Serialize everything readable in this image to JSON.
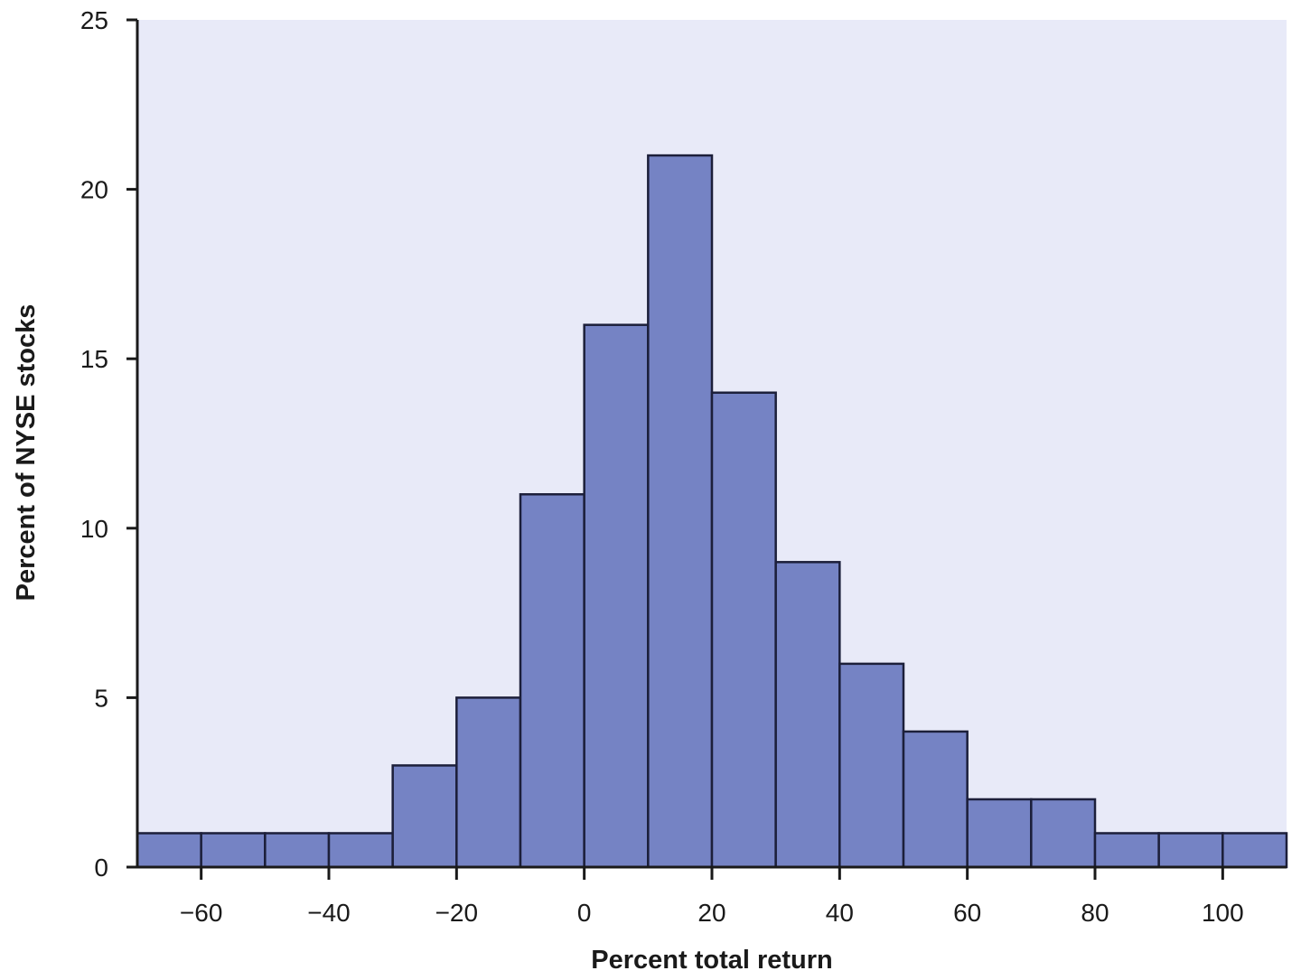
{
  "chart_data": {
    "type": "bar",
    "subtype": "histogram",
    "title": "",
    "xlabel": "Percent total return",
    "ylabel": "Percent of NYSE stocks",
    "xlim": [
      -70,
      110
    ],
    "ylim": [
      0,
      25
    ],
    "x_ticks": [
      -60,
      -40,
      -20,
      0,
      20,
      40,
      60,
      80,
      100
    ],
    "x_tick_labels": [
      "−60",
      "−40",
      "−20",
      "0",
      "20",
      "40",
      "60",
      "80",
      "100"
    ],
    "y_ticks": [
      0,
      5,
      10,
      15,
      20,
      25
    ],
    "y_tick_labels": [
      "0",
      "5",
      "10",
      "15",
      "20",
      "25"
    ],
    "bin_width": 10,
    "bins": [
      {
        "start": -70,
        "end": -60,
        "value": 1
      },
      {
        "start": -60,
        "end": -50,
        "value": 1
      },
      {
        "start": -50,
        "end": -40,
        "value": 1
      },
      {
        "start": -40,
        "end": -30,
        "value": 1
      },
      {
        "start": -30,
        "end": -20,
        "value": 3
      },
      {
        "start": -20,
        "end": -10,
        "value": 5
      },
      {
        "start": -10,
        "end": 0,
        "value": 11
      },
      {
        "start": 0,
        "end": 10,
        "value": 16
      },
      {
        "start": 10,
        "end": 20,
        "value": 21
      },
      {
        "start": 20,
        "end": 30,
        "value": 14
      },
      {
        "start": 30,
        "end": 40,
        "value": 9
      },
      {
        "start": 40,
        "end": 50,
        "value": 6
      },
      {
        "start": 50,
        "end": 60,
        "value": 4
      },
      {
        "start": 60,
        "end": 70,
        "value": 2
      },
      {
        "start": 70,
        "end": 80,
        "value": 2
      },
      {
        "start": 80,
        "end": 90,
        "value": 1
      },
      {
        "start": 90,
        "end": 100,
        "value": 1
      },
      {
        "start": 100,
        "end": 110,
        "value": 1
      }
    ],
    "grid": false,
    "legend": "none",
    "colors": {
      "plot_background": "#e8eaf8",
      "bar_fill": "#7583c4",
      "bar_stroke": "#1c1f3a",
      "axis": "#1a1a1a"
    }
  }
}
